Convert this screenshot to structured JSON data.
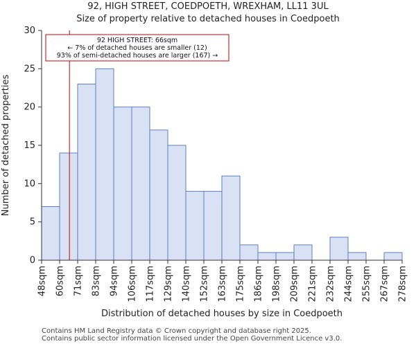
{
  "chart_data": {
    "type": "histogram",
    "title": "92, HIGH STREET, COEDPOETH, WREXHAM, LL11 3UL",
    "subtitle": "Size of property relative to detached houses in Coedpoeth",
    "xlabel": "Distribution of detached houses by size in Coedpoeth",
    "ylabel": "Number of detached properties",
    "ylim": [
      0,
      30
    ],
    "yticks": [
      0,
      5,
      10,
      15,
      20,
      25,
      30
    ],
    "bin_labels": [
      "48sqm",
      "60sqm",
      "71sqm",
      "83sqm",
      "94sqm",
      "106sqm",
      "117sqm",
      "129sqm",
      "140sqm",
      "152sqm",
      "163sqm",
      "175sqm",
      "186sqm",
      "198sqm",
      "209sqm",
      "221sqm",
      "232sqm",
      "244sqm",
      "255sqm",
      "267sqm",
      "278sqm"
    ],
    "values": [
      7,
      14,
      23,
      25,
      20,
      20,
      17,
      15,
      9,
      9,
      11,
      2,
      1,
      1,
      2,
      0,
      3,
      1,
      0,
      1
    ],
    "marker": {
      "value_sqm": 66,
      "label_line1": "92 HIGH STREET: 66sqm",
      "label_line2": "← 7% of detached houses are smaller (12)",
      "label_line3": "93% of semi-detached houses are larger (167) →",
      "color": "#cc0000"
    },
    "bar_fill": "#d9e2f5",
    "bar_stroke": "#5b7fc4"
  },
  "footer": {
    "line1": "Contains HM Land Registry data © Crown copyright and database right 2025.",
    "line2": "Contains public sector information licensed under the Open Government Licence v3.0."
  }
}
